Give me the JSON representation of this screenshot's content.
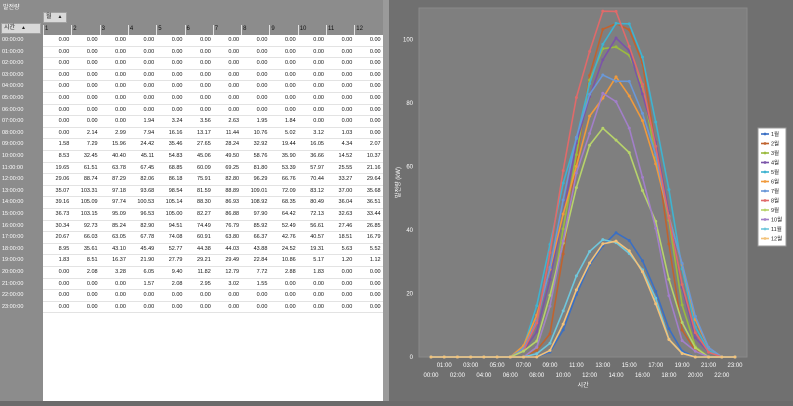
{
  "pivot": {
    "data_field": "발전량",
    "column_field": "월",
    "row_field": "시간",
    "columns": [
      "1",
      "2",
      "3",
      "4",
      "5",
      "6",
      "7",
      "8",
      "9",
      "10",
      "11",
      "12"
    ],
    "rows": [
      {
        "time": "00:00:00",
        "values": [
          "0.00",
          "0.00",
          "0.00",
          "0.00",
          "0.00",
          "0.00",
          "0.00",
          "0.00",
          "0.00",
          "0.00",
          "0.00",
          "0.00"
        ]
      },
      {
        "time": "01:00:00",
        "values": [
          "0.00",
          "0.00",
          "0.00",
          "0.00",
          "0.00",
          "0.00",
          "0.00",
          "0.00",
          "0.00",
          "0.00",
          "0.00",
          "0.00"
        ]
      },
      {
        "time": "02:00:00",
        "values": [
          "0.00",
          "0.00",
          "0.00",
          "0.00",
          "0.00",
          "0.00",
          "0.00",
          "0.00",
          "0.00",
          "0.00",
          "0.00",
          "0.00"
        ]
      },
      {
        "time": "03:00:00",
        "values": [
          "0.00",
          "0.00",
          "0.00",
          "0.00",
          "0.00",
          "0.00",
          "0.00",
          "0.00",
          "0.00",
          "0.00",
          "0.00",
          "0.00"
        ]
      },
      {
        "time": "04:00:00",
        "values": [
          "0.00",
          "0.00",
          "0.00",
          "0.00",
          "0.00",
          "0.00",
          "0.00",
          "0.00",
          "0.00",
          "0.00",
          "0.00",
          "0.00"
        ]
      },
      {
        "time": "05:00:00",
        "values": [
          "0.00",
          "0.00",
          "0.00",
          "0.00",
          "0.00",
          "0.00",
          "0.00",
          "0.00",
          "0.00",
          "0.00",
          "0.00",
          "0.00"
        ]
      },
      {
        "time": "06:00:00",
        "values": [
          "0.00",
          "0.00",
          "0.00",
          "0.00",
          "0.00",
          "0.00",
          "0.00",
          "0.00",
          "0.00",
          "0.00",
          "0.00",
          "0.00"
        ]
      },
      {
        "time": "07:00:00",
        "values": [
          "0.00",
          "0.00",
          "0.00",
          "1.94",
          "3.24",
          "3.56",
          "2.63",
          "1.95",
          "1.84",
          "0.00",
          "0.00",
          "0.00"
        ]
      },
      {
        "time": "08:00:00",
        "values": [
          "0.00",
          "2.14",
          "2.99",
          "7.94",
          "16.16",
          "13.17",
          "11.44",
          "10.76",
          "5.02",
          "3.12",
          "1.03",
          "0.00"
        ]
      },
      {
        "time": "09:00:00",
        "values": [
          "1.58",
          "7.29",
          "15.96",
          "24.42",
          "35.46",
          "27.65",
          "28.24",
          "32.92",
          "19.44",
          "16.05",
          "4.34",
          "2.07"
        ]
      },
      {
        "time": "10:00:00",
        "values": [
          "8.53",
          "32.45",
          "40.40",
          "45.11",
          "54.83",
          "45.06",
          "49.50",
          "58.76",
          "35.90",
          "36.66",
          "14.52",
          "10.37"
        ]
      },
      {
        "time": "11:00:00",
        "values": [
          "19.65",
          "61.51",
          "63.78",
          "67.45",
          "68.85",
          "60.09",
          "69.25",
          "81.80",
          "53.39",
          "57.97",
          "25.55",
          "21.16"
        ]
      },
      {
        "time": "12:00:00",
        "values": [
          "29.06",
          "88.74",
          "87.29",
          "82.06",
          "86.18",
          "75.91",
          "82.80",
          "96.29",
          "66.76",
          "70.44",
          "33.27",
          "29.64"
        ]
      },
      {
        "time": "13:00:00",
        "values": [
          "35.07",
          "103.31",
          "97.18",
          "93.68",
          "98.54",
          "81.59",
          "88.89",
          "109.01",
          "72.09",
          "83.12",
          "37.00",
          "35.68"
        ]
      },
      {
        "time": "14:00:00",
        "values": [
          "39.16",
          "105.09",
          "97.74",
          "100.53",
          "105.14",
          "88.30",
          "86.93",
          "108.92",
          "68.35",
          "80.49",
          "36.04",
          "36.51"
        ]
      },
      {
        "time": "15:00:00",
        "values": [
          "36.73",
          "103.15",
          "95.09",
          "96.53",
          "105.00",
          "82.27",
          "86.88",
          "97.90",
          "64.42",
          "72.13",
          "32.63",
          "33.44"
        ]
      },
      {
        "time": "16:00:00",
        "values": [
          "30.34",
          "92.73",
          "85.24",
          "82.90",
          "94.51",
          "74.49",
          "76.79",
          "85.92",
          "52.49",
          "56.61",
          "27.46",
          "26.85"
        ]
      },
      {
        "time": "17:00:00",
        "values": [
          "20.67",
          "66.03",
          "63.05",
          "67.78",
          "74.08",
          "60.91",
          "63.80",
          "66.37",
          "42.76",
          "40.57",
          "18.51",
          "16.79"
        ]
      },
      {
        "time": "18:00:00",
        "values": [
          "8.95",
          "35.61",
          "43.10",
          "45.49",
          "52.77",
          "44.38",
          "44.03",
          "43.88",
          "24.52",
          "19.31",
          "5.63",
          "5.52"
        ]
      },
      {
        "time": "19:00:00",
        "values": [
          "1.83",
          "8.51",
          "16.37",
          "21.90",
          "27.79",
          "29.21",
          "29.49",
          "22.84",
          "10.86",
          "5.17",
          "1.20",
          "1.12"
        ]
      },
      {
        "time": "20:00:00",
        "values": [
          "0.00",
          "2.08",
          "3.28",
          "6.05",
          "9.40",
          "11.82",
          "12.79",
          "7.72",
          "2.88",
          "1.83",
          "0.00",
          "0.00"
        ]
      },
      {
        "time": "21:00:00",
        "values": [
          "0.00",
          "0.00",
          "0.00",
          "1.57",
          "2.08",
          "2.95",
          "3.02",
          "1.55",
          "0.00",
          "0.00",
          "0.00",
          "0.00"
        ]
      },
      {
        "time": "22:00:00",
        "values": [
          "0.00",
          "0.00",
          "0.00",
          "0.00",
          "0.00",
          "0.00",
          "0.00",
          "0.00",
          "0.00",
          "0.00",
          "0.00",
          "0.00"
        ]
      },
      {
        "time": "23:00:00",
        "values": [
          "0.00",
          "0.00",
          "0.00",
          "0.00",
          "0.00",
          "0.00",
          "0.00",
          "0.00",
          "0.00",
          "0.00",
          "0.00",
          "0.00"
        ]
      }
    ]
  },
  "chart_data": {
    "type": "line",
    "xlabel": "시간",
    "ylabel": "발전량 (kW)",
    "ylim": [
      0,
      110
    ],
    "yticks": [
      "0",
      "20",
      "40",
      "60",
      "80",
      "100"
    ],
    "x": [
      "00:00",
      "01:00",
      "02:00",
      "03:00",
      "04:00",
      "05:00",
      "06:00",
      "07:00",
      "08:00",
      "09:00",
      "10:00",
      "11:00",
      "12:00",
      "13:00",
      "14:00",
      "15:00",
      "16:00",
      "17:00",
      "18:00",
      "19:00",
      "20:00",
      "21:00",
      "22:00",
      "23:00"
    ],
    "grid": false,
    "legend": "right",
    "series": [
      {
        "name": "1월",
        "color": "#3a6fc4",
        "values": [
          0,
          0,
          0,
          0,
          0,
          0,
          0,
          0,
          0,
          1.58,
          8.53,
          19.65,
          29.06,
          35.07,
          39.16,
          36.73,
          30.34,
          20.67,
          8.95,
          1.83,
          0,
          0,
          0,
          0
        ]
      },
      {
        "name": "2월",
        "color": "#c0632f",
        "values": [
          0,
          0,
          0,
          0,
          0,
          0,
          0,
          0,
          2.14,
          7.29,
          32.45,
          61.51,
          88.74,
          103.31,
          105.09,
          103.15,
          92.73,
          66.03,
          35.61,
          8.51,
          2.08,
          0,
          0,
          0
        ]
      },
      {
        "name": "3월",
        "color": "#9bbb3f",
        "values": [
          0,
          0,
          0,
          0,
          0,
          0,
          0,
          0,
          2.99,
          15.96,
          40.4,
          63.78,
          87.29,
          97.18,
          97.74,
          95.09,
          85.24,
          63.05,
          43.1,
          16.37,
          3.28,
          0,
          0,
          0
        ]
      },
      {
        "name": "4월",
        "color": "#7b54a8",
        "values": [
          0,
          0,
          0,
          0,
          0,
          0,
          0,
          1.94,
          7.94,
          24.42,
          45.11,
          67.45,
          82.06,
          93.68,
          100.53,
          96.53,
          82.9,
          67.78,
          45.49,
          21.9,
          6.05,
          1.57,
          0,
          0
        ]
      },
      {
        "name": "5월",
        "color": "#3fb3d0",
        "values": [
          0,
          0,
          0,
          0,
          0,
          0,
          0,
          3.24,
          16.16,
          35.46,
          54.83,
          68.85,
          86.18,
          98.54,
          105.14,
          105.0,
          94.51,
          74.08,
          52.77,
          27.79,
          9.4,
          2.08,
          0,
          0
        ]
      },
      {
        "name": "6월",
        "color": "#f09a3c",
        "values": [
          0,
          0,
          0,
          0,
          0,
          0,
          0,
          3.56,
          13.17,
          27.65,
          45.06,
          60.09,
          75.91,
          81.59,
          88.3,
          82.27,
          74.49,
          60.91,
          44.38,
          29.21,
          11.82,
          2.95,
          0,
          0
        ]
      },
      {
        "name": "7월",
        "color": "#6a98d8",
        "values": [
          0,
          0,
          0,
          0,
          0,
          0,
          0,
          2.63,
          11.44,
          28.24,
          49.5,
          69.25,
          82.8,
          88.89,
          86.93,
          86.88,
          76.79,
          63.8,
          44.03,
          29.49,
          12.79,
          3.02,
          0,
          0
        ]
      },
      {
        "name": "8월",
        "color": "#e06a6a",
        "values": [
          0,
          0,
          0,
          0,
          0,
          0,
          0,
          1.95,
          10.76,
          32.92,
          58.76,
          81.8,
          96.29,
          109.01,
          108.92,
          97.9,
          85.92,
          66.37,
          43.88,
          22.84,
          7.72,
          1.55,
          0,
          0
        ]
      },
      {
        "name": "9월",
        "color": "#b7d36b",
        "values": [
          0,
          0,
          0,
          0,
          0,
          0,
          0,
          1.84,
          5.02,
          19.44,
          35.9,
          53.39,
          66.76,
          72.09,
          68.35,
          64.42,
          52.49,
          42.76,
          24.52,
          10.86,
          2.88,
          0,
          0,
          0
        ]
      },
      {
        "name": "10월",
        "color": "#a27fc9",
        "values": [
          0,
          0,
          0,
          0,
          0,
          0,
          0,
          0,
          3.12,
          16.05,
          36.66,
          57.97,
          70.44,
          83.12,
          80.49,
          72.13,
          56.61,
          40.57,
          19.31,
          5.17,
          1.83,
          0,
          0,
          0
        ]
      },
      {
        "name": "11월",
        "color": "#6fc7dc",
        "values": [
          0,
          0,
          0,
          0,
          0,
          0,
          0,
          0,
          1.03,
          4.34,
          14.52,
          25.55,
          33.27,
          37.0,
          36.04,
          32.63,
          27.46,
          18.51,
          5.63,
          1.2,
          0,
          0,
          0,
          0
        ]
      },
      {
        "name": "12월",
        "color": "#f3c27a",
        "values": [
          0,
          0,
          0,
          0,
          0,
          0,
          0,
          0,
          0,
          2.07,
          10.37,
          21.16,
          29.64,
          35.68,
          36.51,
          33.44,
          26.85,
          16.79,
          5.52,
          1.12,
          0,
          0,
          0,
          0
        ]
      }
    ]
  }
}
